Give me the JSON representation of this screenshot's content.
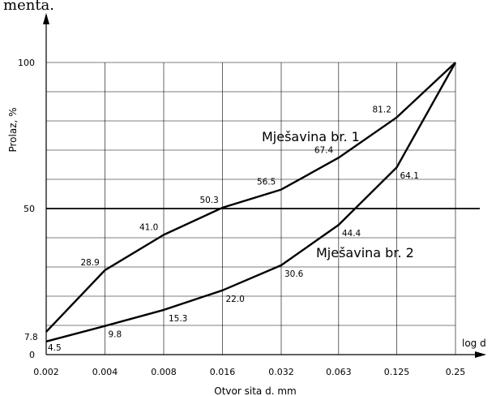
{
  "caption_fragment": "menta.",
  "chart_data": {
    "type": "line",
    "title": "",
    "xlabel": "Otvor sita d. mm",
    "ylabel": "Prolaz, %",
    "x_axis_end_label": "log d",
    "x_scale": "log2",
    "x_ticks": [
      0.002,
      0.004,
      0.008,
      0.016,
      0.032,
      0.063,
      0.125,
      0.25
    ],
    "x_tick_labels": [
      "0.002",
      "0.004",
      "0.008",
      "0.016",
      "0.032",
      "0.063",
      "0.125",
      "0.25"
    ],
    "y_ticks": [
      0,
      50,
      100
    ],
    "y_tick_labels": [
      "0",
      "50",
      "100"
    ],
    "ylim": [
      0,
      100
    ],
    "reference_line_y": 50,
    "grid": true,
    "series": [
      {
        "name": "Mješavina br. 1",
        "x": [
          0.002,
          0.004,
          0.008,
          0.016,
          0.032,
          0.063,
          0.125,
          0.25
        ],
        "values": [
          7.8,
          28.9,
          41.0,
          50.3,
          56.5,
          67.4,
          81.2,
          100
        ],
        "point_labels": [
          "7.8",
          "28.9",
          "41.0",
          "50.3",
          "56.5",
          "67.4",
          "81.2",
          ""
        ]
      },
      {
        "name": "Mješavina br. 2",
        "x": [
          0.002,
          0.004,
          0.008,
          0.016,
          0.032,
          0.063,
          0.125,
          0.25
        ],
        "values": [
          4.5,
          9.8,
          15.3,
          22.0,
          30.6,
          44.4,
          64.1,
          100
        ],
        "point_labels": [
          "4.5",
          "9.8",
          "15.3",
          "22.0",
          "30.6",
          "44.4",
          "64.1",
          ""
        ]
      }
    ]
  }
}
